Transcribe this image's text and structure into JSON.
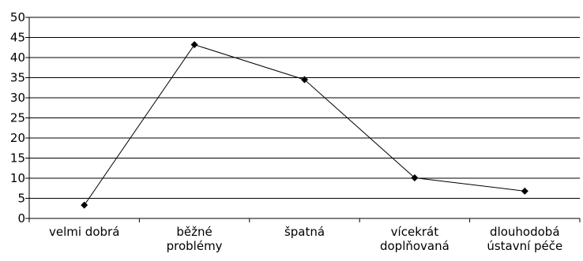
{
  "chart_data": {
    "type": "line",
    "categories": [
      [
        "velmi dobrá"
      ],
      [
        "běžné",
        "problémy"
      ],
      [
        "špatná"
      ],
      [
        "vícekrát",
        "doplňovaná"
      ],
      [
        "dlouhodobá",
        "ústavní péče"
      ]
    ],
    "series": [
      {
        "values": [
          3.3,
          43.2,
          34.5,
          10.1,
          6.8
        ],
        "color": "#000000",
        "marker": "diamond"
      }
    ],
    "ylim": [
      0,
      50
    ],
    "yticks": [
      0,
      5,
      10,
      15,
      20,
      25,
      30,
      35,
      40,
      45,
      50
    ],
    "grid": true,
    "legend": "none",
    "title": "",
    "xlabel": "",
    "ylabel": ""
  }
}
